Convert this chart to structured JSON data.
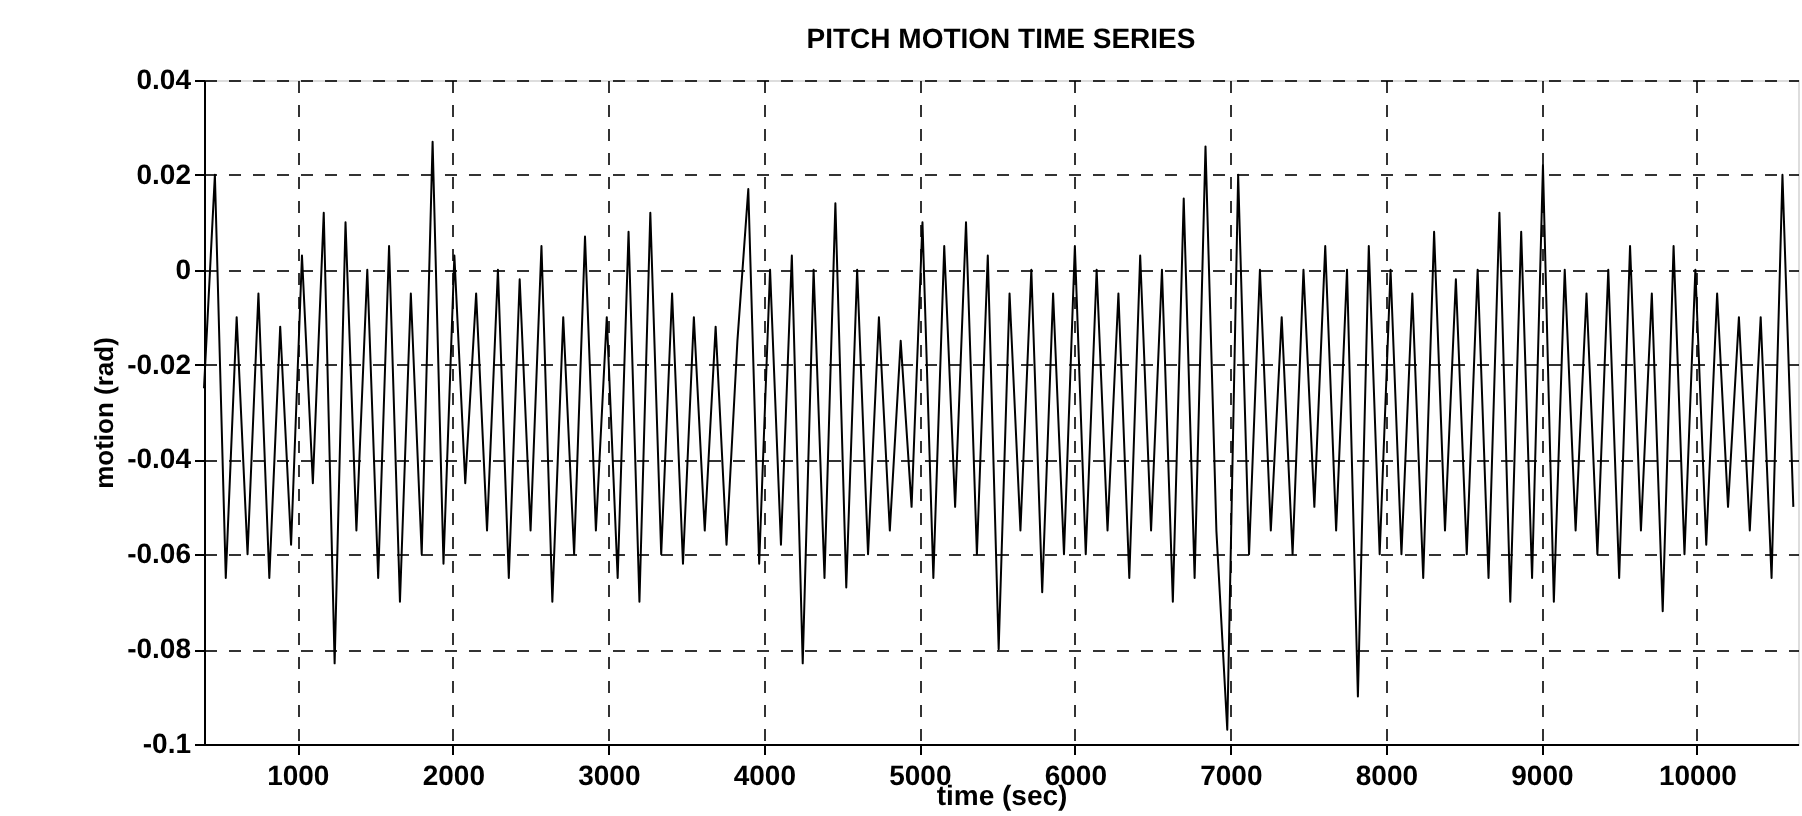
{
  "chart_data": {
    "type": "line",
    "title": "PITCH MOTION TIME SERIES",
    "xlabel": "time (sec)",
    "ylabel": "motion (rad)",
    "x": [
      400,
      470,
      540,
      610,
      680,
      750,
      820,
      890,
      960,
      1030,
      1100,
      1170,
      1240,
      1310,
      1380,
      1450,
      1520,
      1590,
      1660,
      1730,
      1800,
      1870,
      1940,
      2010,
      2080,
      2150,
      2220,
      2290,
      2360,
      2430,
      2500,
      2570,
      2640,
      2710,
      2780,
      2850,
      2920,
      2990,
      3060,
      3130,
      3200,
      3270,
      3340,
      3410,
      3480,
      3550,
      3620,
      3690,
      3760,
      3830,
      3900,
      3970,
      4040,
      4110,
      4180,
      4250,
      4320,
      4390,
      4460,
      4530,
      4600,
      4670,
      4740,
      4810,
      4880,
      4950,
      5020,
      5090,
      5160,
      5230,
      5300,
      5370,
      5440,
      5510,
      5580,
      5650,
      5720,
      5790,
      5860,
      5930,
      6000,
      6070,
      6140,
      6210,
      6280,
      6350,
      6420,
      6490,
      6560,
      6630,
      6700,
      6770,
      6840,
      6910,
      6980,
      7050,
      7120,
      7190,
      7260,
      7330,
      7400,
      7470,
      7540,
      7610,
      7680,
      7750,
      7820,
      7890,
      7960,
      8030,
      8100,
      8170,
      8240,
      8310,
      8380,
      8450,
      8520,
      8590,
      8660,
      8730,
      8800,
      8870,
      8940,
      9010,
      9080,
      9150,
      9220,
      9290,
      9360,
      9430,
      9500,
      9570,
      9640,
      9710,
      9780,
      9850,
      9920,
      9990,
      10060,
      10130,
      10200,
      10270,
      10340,
      10410,
      10480,
      10550,
      10620
    ],
    "series": [
      {
        "color": "#000000",
        "values": [
          -0.025,
          0.02,
          -0.065,
          -0.01,
          -0.06,
          -0.005,
          -0.065,
          -0.012,
          -0.058,
          0.003,
          -0.045,
          0.012,
          -0.083,
          0.01,
          -0.055,
          0.0,
          -0.065,
          0.005,
          -0.07,
          -0.005,
          -0.06,
          0.027,
          -0.062,
          0.003,
          -0.045,
          -0.005,
          -0.055,
          0.0,
          -0.065,
          -0.002,
          -0.055,
          0.005,
          -0.07,
          -0.01,
          -0.06,
          0.007,
          -0.055,
          -0.01,
          -0.065,
          0.008,
          -0.07,
          0.012,
          -0.06,
          -0.005,
          -0.062,
          -0.01,
          -0.055,
          -0.012,
          -0.058,
          -0.015,
          0.017,
          -0.062,
          0.0,
          -0.058,
          0.003,
          -0.083,
          0.0,
          -0.065,
          0.014,
          -0.067,
          0.0,
          -0.06,
          -0.01,
          -0.055,
          -0.015,
          -0.05,
          0.01,
          -0.065,
          0.005,
          -0.05,
          0.01,
          -0.06,
          0.003,
          -0.08,
          -0.005,
          -0.055,
          0.0,
          -0.068,
          -0.005,
          -0.06,
          0.005,
          -0.06,
          0.0,
          -0.055,
          -0.005,
          -0.065,
          0.003,
          -0.055,
          0.0,
          -0.07,
          0.015,
          -0.065,
          0.026,
          -0.055,
          -0.097,
          0.02,
          -0.06,
          0.0,
          -0.055,
          -0.01,
          -0.06,
          0.0,
          -0.05,
          0.005,
          -0.055,
          0.0,
          -0.09,
          0.005,
          -0.06,
          0.0,
          -0.06,
          -0.005,
          -0.065,
          0.008,
          -0.055,
          -0.002,
          -0.06,
          0.0,
          -0.065,
          0.012,
          -0.07,
          0.008,
          -0.065,
          0.022,
          -0.07,
          0.0,
          -0.055,
          -0.005,
          -0.06,
          0.0,
          -0.065,
          0.005,
          -0.055,
          -0.005,
          -0.072,
          0.005,
          -0.06,
          0.0,
          -0.058,
          -0.005,
          -0.05,
          -0.01,
          -0.055,
          -0.01,
          -0.065,
          0.02,
          -0.05
        ]
      }
    ],
    "xlim": [
      400,
      10650
    ],
    "xticks": [
      1000,
      2000,
      3000,
      4000,
      5000,
      6000,
      7000,
      8000,
      9000,
      10000
    ],
    "ylim": [
      -0.1,
      0.04
    ],
    "yticks": [
      {
        "value": -0.1,
        "label": "-0.1"
      },
      {
        "value": -0.08,
        "label": "-0.08"
      },
      {
        "value": -0.06,
        "label": "-0.06"
      },
      {
        "value": -0.04,
        "label": "-0.04"
      },
      {
        "value": -0.02,
        "label": "-0.02"
      },
      {
        "value": 0,
        "label": "0"
      },
      {
        "value": 0.02,
        "label": "0.02"
      },
      {
        "value": 0.04,
        "label": "0.04"
      }
    ],
    "grid": true,
    "line_style": "solid",
    "marker": "none"
  }
}
